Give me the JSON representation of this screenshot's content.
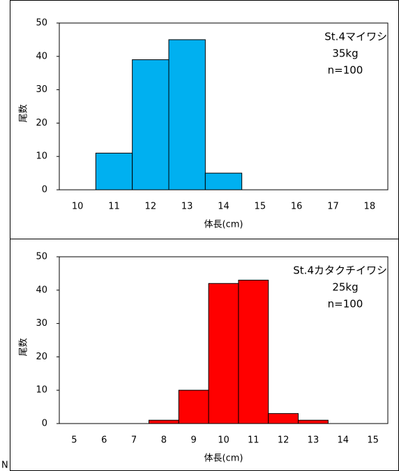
{
  "chart_data": [
    {
      "type": "bar",
      "categories": [
        "10",
        "11",
        "12",
        "13",
        "14",
        "15",
        "16",
        "17",
        "18"
      ],
      "values": [
        0,
        11,
        39,
        45,
        5,
        0,
        0,
        0,
        0
      ],
      "color": "#00b0f0",
      "ylim": [
        0,
        50
      ],
      "yticks": [
        0,
        10,
        20,
        30,
        40,
        50
      ],
      "y_label": "尾数",
      "x_label": "体長(cm)",
      "annotations": [
        "St.4マイワシ",
        "35kg",
        "n=100"
      ]
    },
    {
      "type": "bar",
      "categories": [
        "5",
        "6",
        "7",
        "8",
        "9",
        "10",
        "11",
        "12",
        "13",
        "14",
        "15"
      ],
      "values": [
        0,
        0,
        0,
        1,
        10,
        42,
        43,
        3,
        1,
        0,
        0
      ],
      "color": "#ff0000",
      "ylim": [
        0,
        50
      ],
      "yticks": [
        0,
        10,
        20,
        30,
        40,
        50
      ],
      "y_label": "尾数",
      "x_label": "体長(cm)",
      "annotations": [
        "St.4カタクチイワシ",
        "25kg",
        "n=100"
      ]
    }
  ],
  "stray_text": "N"
}
